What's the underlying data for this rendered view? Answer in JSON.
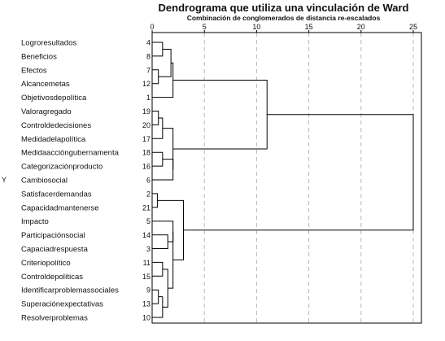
{
  "chart_data": {
    "type": "dendrogram",
    "title": "Dendrograma que utiliza una vinculación de Ward",
    "subtitle": "Combinación de conglomerados de distancia re-escalados",
    "ylabel": "Y",
    "x_ticks": [
      "0",
      "5",
      "10",
      "15",
      "20",
      "25"
    ],
    "xlim": [
      0,
      25
    ],
    "grid": "dashed vertical",
    "leaves": [
      {
        "label": "Logroresultados",
        "id": "4"
      },
      {
        "label": "Beneficios",
        "id": "8"
      },
      {
        "label": "Efectos",
        "id": "7"
      },
      {
        "label": "Alcancemetas",
        "id": "12"
      },
      {
        "label": "Objetivosdepolítica",
        "id": "1"
      },
      {
        "label": "Valoragregado",
        "id": "19"
      },
      {
        "label": "Controldedecisiones",
        "id": "20"
      },
      {
        "label": "Medidadelapolítica",
        "id": "17"
      },
      {
        "label": "Medidaaccióngubernamenta",
        "id": "18"
      },
      {
        "label": "Categorizaciónproducto",
        "id": "16"
      },
      {
        "label": "Cambiosocial",
        "id": "6"
      },
      {
        "label": "Satisfacerdemandas",
        "id": "2"
      },
      {
        "label": "Capacidadmantenerse",
        "id": "21"
      },
      {
        "label": "Impacto",
        "id": "5"
      },
      {
        "label": "Participaciónsocial",
        "id": "14"
      },
      {
        "label": "Capaciadrespuesta",
        "id": "3"
      },
      {
        "label": "Criteriopolítico",
        "id": "11"
      },
      {
        "label": "Controldepolíticas",
        "id": "15"
      },
      {
        "label": "Identificarproblemassociales",
        "id": "9"
      },
      {
        "label": "Superaciónexpectativas",
        "id": "13"
      },
      {
        "label": "Resolverproblemas",
        "id": "10"
      }
    ],
    "merges": [
      {
        "name": "A",
        "children": [
          0,
          1
        ],
        "height": 1.0
      },
      {
        "name": "B",
        "children": [
          2,
          3
        ],
        "height": 0.6
      },
      {
        "name": "C",
        "children": [
          "A",
          "B"
        ],
        "height": 1.8
      },
      {
        "name": "D",
        "children": [
          "C",
          4
        ],
        "height": 2.0
      },
      {
        "name": "E",
        "children": [
          5,
          6
        ],
        "height": 0.6
      },
      {
        "name": "F",
        "children": [
          "E",
          7
        ],
        "height": 1.0
      },
      {
        "name": "G",
        "children": [
          8,
          9
        ],
        "height": 1.0
      },
      {
        "name": "H",
        "children": [
          "G",
          10
        ],
        "height": 2.0
      },
      {
        "name": "I",
        "children": [
          "F",
          "H"
        ],
        "height": 2.0
      },
      {
        "name": "J",
        "children": [
          11,
          12
        ],
        "height": 0.5
      },
      {
        "name": "K",
        "children": [
          14,
          15
        ],
        "height": 1.5
      },
      {
        "name": "L",
        "children": [
          13,
          "K"
        ],
        "height": 2.0
      },
      {
        "name": "M",
        "children": [
          16,
          17
        ],
        "height": 1.0
      },
      {
        "name": "N",
        "children": [
          18,
          19
        ],
        "height": 0.6
      },
      {
        "name": "O",
        "children": [
          "N",
          20
        ],
        "height": 1.0
      },
      {
        "name": "P",
        "children": [
          "M",
          "O"
        ],
        "height": 1.5
      },
      {
        "name": "Q",
        "children": [
          "L",
          "P"
        ],
        "height": 2.0
      },
      {
        "name": "R",
        "children": [
          "J",
          "Q"
        ],
        "height": 3.0
      },
      {
        "name": "S",
        "children": [
          "D",
          "I"
        ],
        "height": 11.0
      },
      {
        "name": "T",
        "children": [
          "S",
          "R"
        ],
        "height": 25.0
      }
    ]
  }
}
